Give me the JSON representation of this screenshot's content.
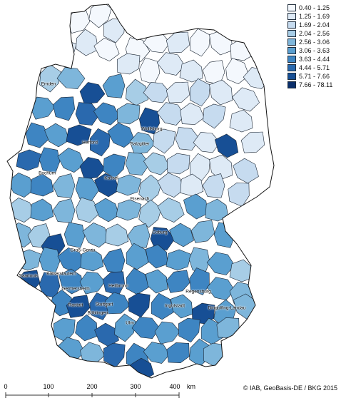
{
  "legend": {
    "classes": [
      {
        "label": "0.40 - 1.25",
        "color": "#f4f8fd"
      },
      {
        "label": "1.25 - 1.69",
        "color": "#deeaf6"
      },
      {
        "label": "1.69 - 2.04",
        "color": "#c6dbef"
      },
      {
        "label": "2.04 - 2.56",
        "color": "#a7cde6"
      },
      {
        "label": "2.56 - 3.06",
        "color": "#7eb6db"
      },
      {
        "label": "3.06 - 3.63",
        "color": "#5a9fd0"
      },
      {
        "label": "3.63 - 4.44",
        "color": "#3e85c2"
      },
      {
        "label": "4.44 - 5.71",
        "color": "#2a69ae"
      },
      {
        "label": "5.71 - 7.66",
        "color": "#174f95"
      },
      {
        "label": "7.66 - 78.11",
        "color": "#0b2f6b"
      }
    ]
  },
  "cities": [
    "Emden",
    "Wolfsburg",
    "Herford",
    "Salzgitter",
    "Bochum",
    "Kassel",
    "Eisenach",
    "Coburg",
    "Groß-Gerau",
    "Kaiserslautern",
    "Saarlouis",
    "Germersheim",
    "Heilbronn",
    "Regensburg",
    "Rastatt",
    "Stuttgart",
    "Böblingen",
    "Ingolstadt",
    "Dingolfing-Landau",
    "Ulm"
  ],
  "scale": {
    "ticks": [
      "0",
      "100",
      "200",
      "300",
      "400"
    ],
    "unit": "km"
  },
  "credit": "© IAB, GeoBasis-DE / BKG 2015"
}
